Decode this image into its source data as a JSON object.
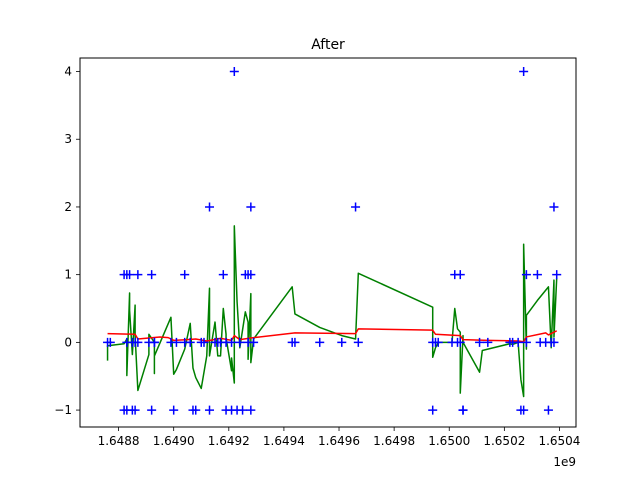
{
  "chart_data": {
    "type": "scatter",
    "title": "After",
    "xlabel": "",
    "ylabel": "",
    "x_offset_label": "1e9",
    "xlim": [
      1.64866,
      1.65046
    ],
    "ylim": [
      -1.25,
      4.2
    ],
    "x_ticks": [
      1.6488,
      1.649,
      1.6492,
      1.6494,
      1.6496,
      1.6498,
      1.65,
      1.6502,
      1.6504
    ],
    "x_tick_labels": [
      "1.6488",
      "1.6490",
      "1.6492",
      "1.6494",
      "1.6496",
      "1.6498",
      "1.6500",
      "1.6502",
      "1.6504"
    ],
    "y_ticks": [
      -1,
      0,
      1,
      2,
      3,
      4
    ],
    "y_tick_labels": [
      "−1",
      "0",
      "1",
      "2",
      "3",
      "4"
    ],
    "grid": false,
    "series": [
      {
        "style": "markers",
        "marker": "plus",
        "color": "#0000ff",
        "points": [
          [
            1.64876,
            0
          ],
          [
            1.64877,
            0
          ],
          [
            1.64882,
            1
          ],
          [
            1.64883,
            1
          ],
          [
            1.64883,
            0
          ],
          [
            1.64884,
            1
          ],
          [
            1.64885,
            0
          ],
          [
            1.64882,
            -1
          ],
          [
            1.64883,
            -1
          ],
          [
            1.64885,
            -1
          ],
          [
            1.64886,
            -1
          ],
          [
            1.64887,
            1
          ],
          [
            1.64887,
            0
          ],
          [
            1.64886,
            0
          ],
          [
            1.64891,
            0
          ],
          [
            1.64892,
            1
          ],
          [
            1.64892,
            -1
          ],
          [
            1.64893,
            0
          ],
          [
            1.64893,
            0
          ],
          [
            1.64899,
            0
          ],
          [
            1.649,
            -1
          ],
          [
            1.64901,
            0
          ],
          [
            1.64904,
            1
          ],
          [
            1.64904,
            0
          ],
          [
            1.64906,
            0
          ],
          [
            1.64907,
            -1
          ],
          [
            1.64908,
            -1
          ],
          [
            1.6491,
            0
          ],
          [
            1.64911,
            0
          ],
          [
            1.64913,
            2
          ],
          [
            1.64913,
            -1
          ],
          [
            1.64915,
            0
          ],
          [
            1.64916,
            0
          ],
          [
            1.64917,
            0
          ],
          [
            1.64918,
            1
          ],
          [
            1.64919,
            -1
          ],
          [
            1.64919,
            0
          ],
          [
            1.64921,
            0
          ],
          [
            1.64921,
            -1
          ],
          [
            1.64922,
            4
          ],
          [
            1.64923,
            -1
          ],
          [
            1.64924,
            0
          ],
          [
            1.64925,
            -1
          ],
          [
            1.64926,
            1
          ],
          [
            1.64927,
            1
          ],
          [
            1.64927,
            0
          ],
          [
            1.64928,
            1
          ],
          [
            1.64928,
            2
          ],
          [
            1.64928,
            -1
          ],
          [
            1.64929,
            0
          ],
          [
            1.64943,
            0
          ],
          [
            1.64944,
            0
          ],
          [
            1.64953,
            0
          ],
          [
            1.64961,
            0
          ],
          [
            1.64966,
            2
          ],
          [
            1.64967,
            0
          ],
          [
            1.64994,
            -1
          ],
          [
            1.64994,
            0
          ],
          [
            1.64995,
            0
          ],
          [
            1.64996,
            0
          ],
          [
            1.65001,
            0
          ],
          [
            1.65002,
            1
          ],
          [
            1.65003,
            0
          ],
          [
            1.65004,
            1
          ],
          [
            1.65004,
            0
          ],
          [
            1.65005,
            -1
          ],
          [
            1.65005,
            -1
          ],
          [
            1.65011,
            0
          ],
          [
            1.65014,
            0
          ],
          [
            1.65022,
            0
          ],
          [
            1.65023,
            0
          ],
          [
            1.65025,
            0
          ],
          [
            1.65026,
            -1
          ],
          [
            1.65027,
            4
          ],
          [
            1.65027,
            -1
          ],
          [
            1.65028,
            0
          ],
          [
            1.65028,
            1
          ],
          [
            1.65032,
            1
          ],
          [
            1.65033,
            0
          ],
          [
            1.65035,
            0
          ],
          [
            1.65036,
            -1
          ],
          [
            1.65037,
            0
          ],
          [
            1.65038,
            2
          ],
          [
            1.65038,
            0
          ],
          [
            1.65039,
            1
          ]
        ]
      },
      {
        "style": "line",
        "color": "#008000",
        "points": [
          [
            1.64876,
            -0.27
          ],
          [
            1.64876,
            -0.05
          ],
          [
            1.64882,
            -0.02
          ],
          [
            1.64883,
            0.05
          ],
          [
            1.64883,
            -0.49
          ],
          [
            1.64884,
            0.73
          ],
          [
            1.64884,
            0.47
          ],
          [
            1.64885,
            -0.18
          ],
          [
            1.64886,
            0.55
          ],
          [
            1.64886,
            0.1
          ],
          [
            1.64887,
            -0.71
          ],
          [
            1.64891,
            -0.18
          ],
          [
            1.64891,
            0.12
          ],
          [
            1.64893,
            0
          ],
          [
            1.64893,
            -0.46
          ],
          [
            1.64893,
            -0.2
          ],
          [
            1.64899,
            0.37
          ],
          [
            1.649,
            -0.47
          ],
          [
            1.64901,
            -0.4
          ],
          [
            1.64904,
            -0.1
          ],
          [
            1.64906,
            0.28
          ],
          [
            1.64907,
            -0.38
          ],
          [
            1.64908,
            -0.52
          ],
          [
            1.6491,
            -0.68
          ],
          [
            1.64912,
            -0.2
          ],
          [
            1.64913,
            0.8
          ],
          [
            1.64913,
            -0.2
          ],
          [
            1.64915,
            0.3
          ],
          [
            1.64916,
            -0.2
          ],
          [
            1.64917,
            -0.2
          ],
          [
            1.64918,
            0.5
          ],
          [
            1.64919,
            0.12
          ],
          [
            1.64919,
            0.07
          ],
          [
            1.64921,
            -0.42
          ],
          [
            1.64921,
            -0.23
          ],
          [
            1.64922,
            -0.6
          ],
          [
            1.64922,
            1.72
          ],
          [
            1.64923,
            0.6
          ],
          [
            1.64924,
            -0.08
          ],
          [
            1.64926,
            0.45
          ],
          [
            1.64927,
            0.3
          ],
          [
            1.64927,
            -0.25
          ],
          [
            1.64928,
            0.72
          ],
          [
            1.64928,
            -0.3
          ],
          [
            1.64929,
            0.05
          ],
          [
            1.64943,
            0.82
          ],
          [
            1.64944,
            0.42
          ],
          [
            1.64953,
            0.22
          ],
          [
            1.64961,
            0.1
          ],
          [
            1.64966,
            0.05
          ],
          [
            1.64967,
            1.02
          ],
          [
            1.64994,
            0.52
          ],
          [
            1.64994,
            -0.22
          ],
          [
            1.64995,
            -0.08
          ],
          [
            1.64996,
            0
          ],
          [
            1.65001,
            0
          ],
          [
            1.65002,
            0.5
          ],
          [
            1.65003,
            0.2
          ],
          [
            1.65004,
            0.15
          ],
          [
            1.65004,
            -0.75
          ],
          [
            1.65005,
            0.1
          ],
          [
            1.65005,
            0
          ],
          [
            1.65011,
            -0.44
          ],
          [
            1.65012,
            -0.12
          ],
          [
            1.65014,
            -0.1
          ],
          [
            1.65022,
            -0.02
          ],
          [
            1.65023,
            -0.03
          ],
          [
            1.65025,
            0
          ],
          [
            1.65026,
            -0.55
          ],
          [
            1.65027,
            -0.8
          ],
          [
            1.65027,
            1.45
          ],
          [
            1.65028,
            -0.1
          ],
          [
            1.65028,
            0.4
          ],
          [
            1.65032,
            0.62
          ],
          [
            1.65036,
            0.82
          ],
          [
            1.65037,
            -0.08
          ],
          [
            1.65038,
            0.92
          ],
          [
            1.65038,
            0.08
          ],
          [
            1.65039,
            0.95
          ]
        ]
      },
      {
        "style": "line",
        "color": "#ff0000",
        "points": [
          [
            1.64876,
            0.13
          ],
          [
            1.64886,
            0.12
          ],
          [
            1.64887,
            0.05
          ],
          [
            1.64895,
            0.08
          ],
          [
            1.64898,
            0.07
          ],
          [
            1.649,
            0.03
          ],
          [
            1.64905,
            0.04
          ],
          [
            1.64908,
            0.05
          ],
          [
            1.64912,
            0.02
          ],
          [
            1.64917,
            0.06
          ],
          [
            1.64921,
            0.03
          ],
          [
            1.64922,
            0.1
          ],
          [
            1.64924,
            0.04
          ],
          [
            1.64929,
            0.07
          ],
          [
            1.64944,
            0.14
          ],
          [
            1.64966,
            0.13
          ],
          [
            1.64967,
            0.2
          ],
          [
            1.64994,
            0.18
          ],
          [
            1.64995,
            0.12
          ],
          [
            1.65004,
            0.1
          ],
          [
            1.65005,
            0.04
          ],
          [
            1.65014,
            0.03
          ],
          [
            1.65025,
            0.02
          ],
          [
            1.65027,
            0.01
          ],
          [
            1.65028,
            0.08
          ],
          [
            1.65035,
            0.14
          ],
          [
            1.65036,
            0.11
          ],
          [
            1.65039,
            0.17
          ]
        ]
      }
    ]
  }
}
